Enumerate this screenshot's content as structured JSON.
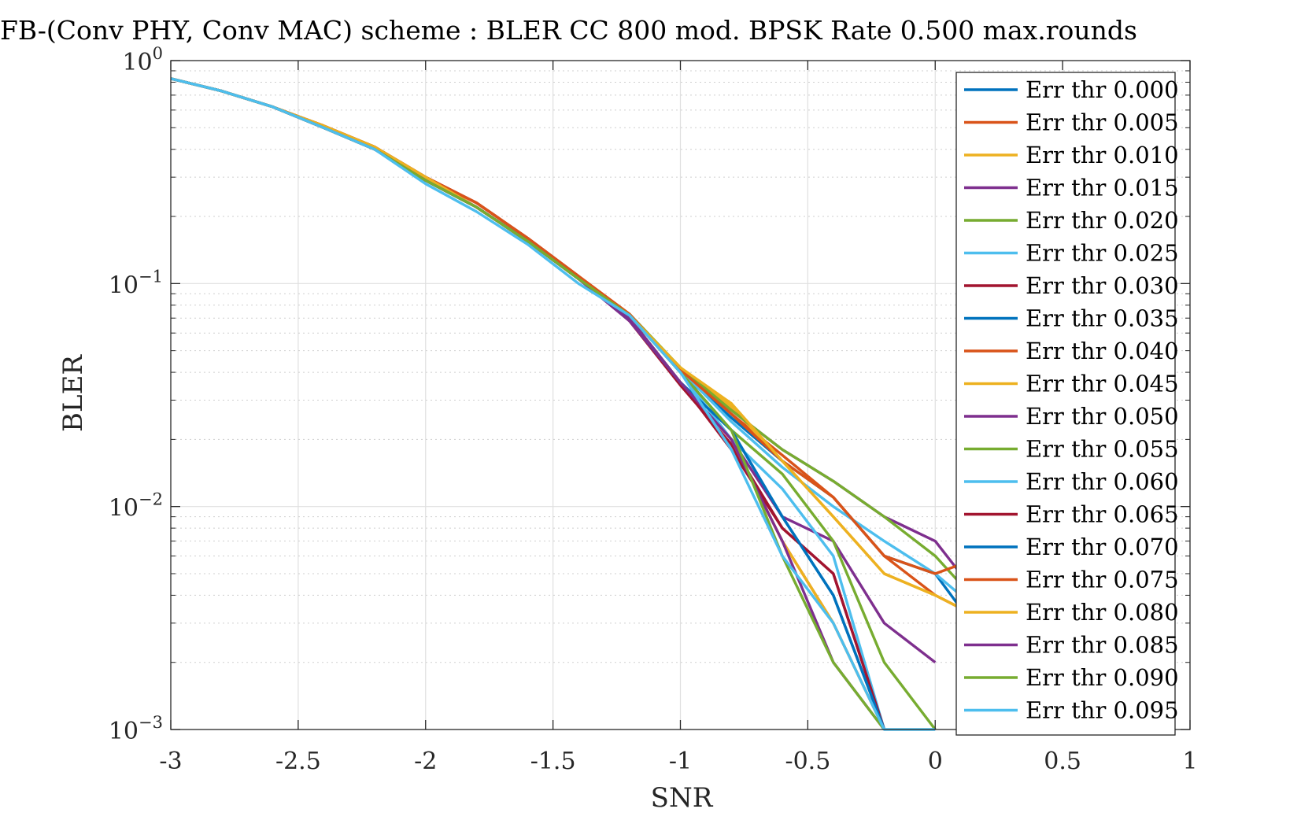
{
  "chart_data": {
    "type": "line",
    "title": "FB-(Conv PHY, Conv MAC) scheme : BLER CC 800 mod. BPSK Rate 0.500 max.rounds",
    "xlabel": "SNR",
    "ylabel": "BLER",
    "xlim": [
      -3,
      1
    ],
    "ylim": [
      0.001,
      1
    ],
    "yscale": "log",
    "grid": true,
    "minor_grid": true,
    "legend_position": "top-right",
    "x_ticks": [
      "-3",
      "-2.5",
      "-2",
      "-1.5",
      "-1",
      "-0.5",
      "0",
      "0.5",
      "1"
    ],
    "y_ticks": [
      {
        "base": "10",
        "exp": "0"
      },
      {
        "base": "10",
        "exp": "−1"
      },
      {
        "base": "10",
        "exp": "−2"
      },
      {
        "base": "10",
        "exp": "−3"
      }
    ],
    "series": [
      {
        "name": "Err thr 0.000",
        "color": "#0072BD",
        "x": [
          -3,
          -2.8,
          -2.6,
          -2.4,
          -2.2,
          -2,
          -1.8,
          -1.6,
          -1.4,
          -1.2,
          -1,
          -0.8,
          -0.6,
          -0.4,
          -0.2,
          0,
          0.1
        ],
        "y": [
          0.83,
          0.73,
          0.62,
          0.5,
          0.4,
          0.29,
          0.22,
          0.155,
          0.105,
          0.072,
          0.04,
          0.025,
          0.016,
          0.011,
          0.006,
          0.005,
          0.0035
        ]
      },
      {
        "name": "Err thr 0.005",
        "color": "#D95319",
        "x": [
          -3,
          -2.8,
          -2.6,
          -2.4,
          -2.2,
          -2,
          -1.8,
          -1.6,
          -1.4,
          -1.2,
          -1,
          -0.8,
          -0.6,
          -0.4,
          -0.2,
          0,
          0.1
        ],
        "y": [
          0.83,
          0.73,
          0.62,
          0.51,
          0.41,
          0.3,
          0.23,
          0.16,
          0.108,
          0.073,
          0.041,
          0.026,
          0.017,
          0.011,
          0.006,
          0.004,
          0.0035
        ]
      },
      {
        "name": "Err thr 0.010",
        "color": "#EDB120",
        "x": [
          -3,
          -2.8,
          -2.6,
          -2.4,
          -2.2,
          -2,
          -1.8,
          -1.6,
          -1.4,
          -1.2,
          -1,
          -0.8,
          -0.6,
          -0.4,
          -0.2,
          0,
          0.1
        ],
        "y": [
          0.83,
          0.73,
          0.62,
          0.51,
          0.41,
          0.29,
          0.22,
          0.155,
          0.105,
          0.072,
          0.042,
          0.028,
          0.016,
          0.009,
          0.005,
          0.004,
          0.0035
        ]
      },
      {
        "name": "Err thr 0.015",
        "color": "#7E2F8E",
        "x": [
          -3,
          -2.8,
          -2.6,
          -2.4,
          -2.2,
          -2,
          -1.8,
          -1.6,
          -1.4,
          -1.2,
          -1,
          -0.8,
          -0.6,
          -0.4,
          -0.2,
          0,
          0.1
        ],
        "y": [
          0.83,
          0.73,
          0.62,
          0.5,
          0.4,
          0.3,
          0.22,
          0.155,
          0.105,
          0.072,
          0.041,
          0.027,
          0.018,
          0.013,
          0.009,
          0.007,
          0.005
        ]
      },
      {
        "name": "Err thr 0.020",
        "color": "#77AC30",
        "x": [
          -3,
          -2.8,
          -2.6,
          -2.4,
          -2.2,
          -2,
          -1.8,
          -1.6,
          -1.4,
          -1.2,
          -1,
          -0.8,
          -0.6,
          -0.4,
          -0.2,
          0,
          0.1
        ],
        "y": [
          0.83,
          0.73,
          0.62,
          0.51,
          0.41,
          0.3,
          0.22,
          0.155,
          0.105,
          0.073,
          0.042,
          0.027,
          0.018,
          0.013,
          0.009,
          0.006,
          0.0045
        ]
      },
      {
        "name": "Err thr 0.025",
        "color": "#4DBEEE",
        "x": [
          -3,
          -2.8,
          -2.6,
          -2.4,
          -2.2,
          -2,
          -1.8,
          -1.6,
          -1.4,
          -1.2,
          -1,
          -0.8,
          -0.6,
          -0.4,
          -0.2,
          0,
          0.1
        ],
        "y": [
          0.83,
          0.73,
          0.62,
          0.5,
          0.4,
          0.29,
          0.22,
          0.155,
          0.105,
          0.072,
          0.041,
          0.024,
          0.015,
          0.01,
          0.007,
          0.005,
          0.004
        ]
      },
      {
        "name": "Err thr 0.030",
        "color": "#A2142F",
        "x": [
          -3,
          -2.8,
          -2.6,
          -2.4,
          -2.2,
          -2,
          -1.8,
          -1.6,
          -1.4,
          -1.2,
          -1,
          -0.8,
          -0.6,
          -0.4,
          -0.2
        ],
        "y": [
          0.83,
          0.73,
          0.62,
          0.51,
          0.41,
          0.3,
          0.23,
          0.16,
          0.108,
          0.068,
          0.035,
          0.019,
          0.008,
          0.005,
          0.001
        ]
      },
      {
        "name": "Err thr 0.035",
        "color": "#0072BD",
        "x": [
          -3,
          -2.8,
          -2.6,
          -2.4,
          -2.2,
          -2,
          -1.8,
          -1.6,
          -1.4,
          -1.2,
          -1,
          -0.8,
          -0.6,
          -0.4,
          -0.2
        ],
        "y": [
          0.83,
          0.73,
          0.62,
          0.5,
          0.4,
          0.29,
          0.22,
          0.155,
          0.105,
          0.07,
          0.036,
          0.022,
          0.009,
          0.004,
          0.001
        ]
      },
      {
        "name": "Err thr 0.040",
        "color": "#D95319",
        "x": [
          -3,
          -2.8,
          -2.6,
          -2.4,
          -2.2,
          -2,
          -1.8,
          -1.6,
          -1.4,
          -1.2,
          -1,
          -0.8,
          -0.6,
          -0.4,
          -0.2
        ],
        "y": [
          0.83,
          0.73,
          0.62,
          0.5,
          0.4,
          0.29,
          0.22,
          0.155,
          0.105,
          0.07,
          0.036,
          0.02,
          0.007,
          0.003,
          0.001
        ]
      },
      {
        "name": "Err thr 0.045",
        "color": "#EDB120",
        "x": [
          -3,
          -2.8,
          -2.6,
          -2.4,
          -2.2,
          -2,
          -1.8,
          -1.6,
          -1.4,
          -1.2,
          -1,
          -0.8,
          -0.6,
          -0.4,
          -0.2
        ],
        "y": [
          0.83,
          0.73,
          0.62,
          0.5,
          0.4,
          0.29,
          0.22,
          0.155,
          0.105,
          0.07,
          0.036,
          0.02,
          0.007,
          0.003,
          0.001
        ]
      },
      {
        "name": "Err thr 0.050",
        "color": "#7E2F8E",
        "x": [
          -3,
          -2.8,
          -2.6,
          -2.4,
          -2.2,
          -2,
          -1.8,
          -1.6,
          -1.4,
          -1.2,
          -1,
          -0.8,
          -0.6,
          -0.4,
          -0.2,
          0
        ],
        "y": [
          0.83,
          0.73,
          0.62,
          0.5,
          0.4,
          0.29,
          0.22,
          0.155,
          0.105,
          0.068,
          0.036,
          0.02,
          0.009,
          0.007,
          0.003,
          0.002
        ]
      },
      {
        "name": "Err thr 0.055",
        "color": "#77AC30",
        "x": [
          -3,
          -2.8,
          -2.6,
          -2.4,
          -2.2,
          -2,
          -1.8,
          -1.6,
          -1.4,
          -1.2,
          -1,
          -0.8,
          -0.6,
          -0.4,
          -0.2,
          0
        ],
        "y": [
          0.83,
          0.73,
          0.62,
          0.5,
          0.4,
          0.29,
          0.22,
          0.155,
          0.105,
          0.072,
          0.04,
          0.022,
          0.014,
          0.007,
          0.002,
          0.001
        ]
      },
      {
        "name": "Err thr 0.060",
        "color": "#4DBEEE",
        "x": [
          -3,
          -2.8,
          -2.6,
          -2.4,
          -2.2,
          -2,
          -1.8,
          -1.6,
          -1.4,
          -1.2,
          -1,
          -0.8,
          -0.6,
          -0.4,
          -0.2
        ],
        "y": [
          0.83,
          0.73,
          0.62,
          0.5,
          0.4,
          0.29,
          0.22,
          0.155,
          0.105,
          0.072,
          0.04,
          0.02,
          0.012,
          0.006,
          0.001
        ]
      },
      {
        "name": "Err thr 0.065",
        "color": "#A2142F",
        "x": [
          -3,
          -2.8,
          -2.6,
          -2.4,
          -2.2,
          -2,
          -1.8,
          -1.6,
          -1.4,
          -1.2,
          -1,
          -0.8,
          -0.6,
          -0.4,
          -0.2
        ],
        "y": [
          0.83,
          0.73,
          0.62,
          0.5,
          0.4,
          0.29,
          0.22,
          0.155,
          0.105,
          0.07,
          0.036,
          0.018,
          0.008,
          0.005,
          0.001
        ]
      },
      {
        "name": "Err thr 0.070",
        "color": "#0072BD",
        "x": [
          -3,
          -2.8,
          -2.6,
          -2.4,
          -2.2,
          -2,
          -1.8,
          -1.6,
          -1.4,
          -1.2,
          -1,
          -0.8,
          -0.6,
          -0.4,
          -0.2
        ],
        "y": [
          0.83,
          0.73,
          0.62,
          0.5,
          0.4,
          0.29,
          0.22,
          0.155,
          0.105,
          0.07,
          0.036,
          0.022,
          0.009,
          0.004,
          0.001
        ]
      },
      {
        "name": "Err thr 0.075",
        "color": "#D95319",
        "x": [
          -3,
          -2.8,
          -2.6,
          -2.4,
          -2.2,
          -2,
          -1.8,
          -1.6,
          -1.4,
          -1.2,
          -1,
          -0.8,
          -0.6,
          -0.4,
          -0.2,
          0,
          0.1
        ],
        "y": [
          0.83,
          0.73,
          0.62,
          0.51,
          0.41,
          0.3,
          0.23,
          0.16,
          0.108,
          0.073,
          0.041,
          0.026,
          0.016,
          0.011,
          0.006,
          0.005,
          0.0055
        ]
      },
      {
        "name": "Err thr 0.080",
        "color": "#EDB120",
        "x": [
          -3,
          -2.8,
          -2.6,
          -2.4,
          -2.2,
          -2,
          -1.8,
          -1.6,
          -1.4,
          -1.2,
          -1,
          -0.8,
          -0.6,
          -0.4,
          -0.2,
          0
        ],
        "y": [
          0.83,
          0.73,
          0.62,
          0.51,
          0.41,
          0.3,
          0.22,
          0.155,
          0.105,
          0.072,
          0.042,
          0.029,
          0.016,
          0.009,
          0.005,
          0.004
        ]
      },
      {
        "name": "Err thr 0.085",
        "color": "#7E2F8E",
        "x": [
          -3,
          -2.8,
          -2.6,
          -2.4,
          -2.2,
          -2,
          -1.8,
          -1.6,
          -1.4,
          -1.2,
          -1,
          -0.8,
          -0.6,
          -0.4,
          -0.2
        ],
        "y": [
          0.83,
          0.73,
          0.62,
          0.5,
          0.4,
          0.29,
          0.22,
          0.155,
          0.105,
          0.07,
          0.036,
          0.02,
          0.007,
          0.002,
          0.001
        ]
      },
      {
        "name": "Err thr 0.090",
        "color": "#77AC30",
        "x": [
          -3,
          -2.8,
          -2.6,
          -2.4,
          -2.2,
          -2,
          -1.8,
          -1.6,
          -1.4,
          -1.2,
          -1,
          -0.8,
          -0.6,
          -0.4,
          -0.2
        ],
        "y": [
          0.83,
          0.73,
          0.62,
          0.5,
          0.4,
          0.29,
          0.22,
          0.155,
          0.105,
          0.072,
          0.04,
          0.022,
          0.006,
          0.002,
          0.001
        ]
      },
      {
        "name": "Err thr 0.095",
        "color": "#4DBEEE",
        "x": [
          -3,
          -2.8,
          -2.6,
          -2.4,
          -2.2,
          -2,
          -1.8,
          -1.6,
          -1.4,
          -1.2,
          -1,
          -0.8,
          -0.6,
          -0.4,
          -0.2,
          0
        ],
        "y": [
          0.83,
          0.73,
          0.62,
          0.5,
          0.4,
          0.28,
          0.21,
          0.15,
          0.1,
          0.072,
          0.04,
          0.018,
          0.006,
          0.003,
          0.001,
          0.001
        ]
      }
    ]
  }
}
